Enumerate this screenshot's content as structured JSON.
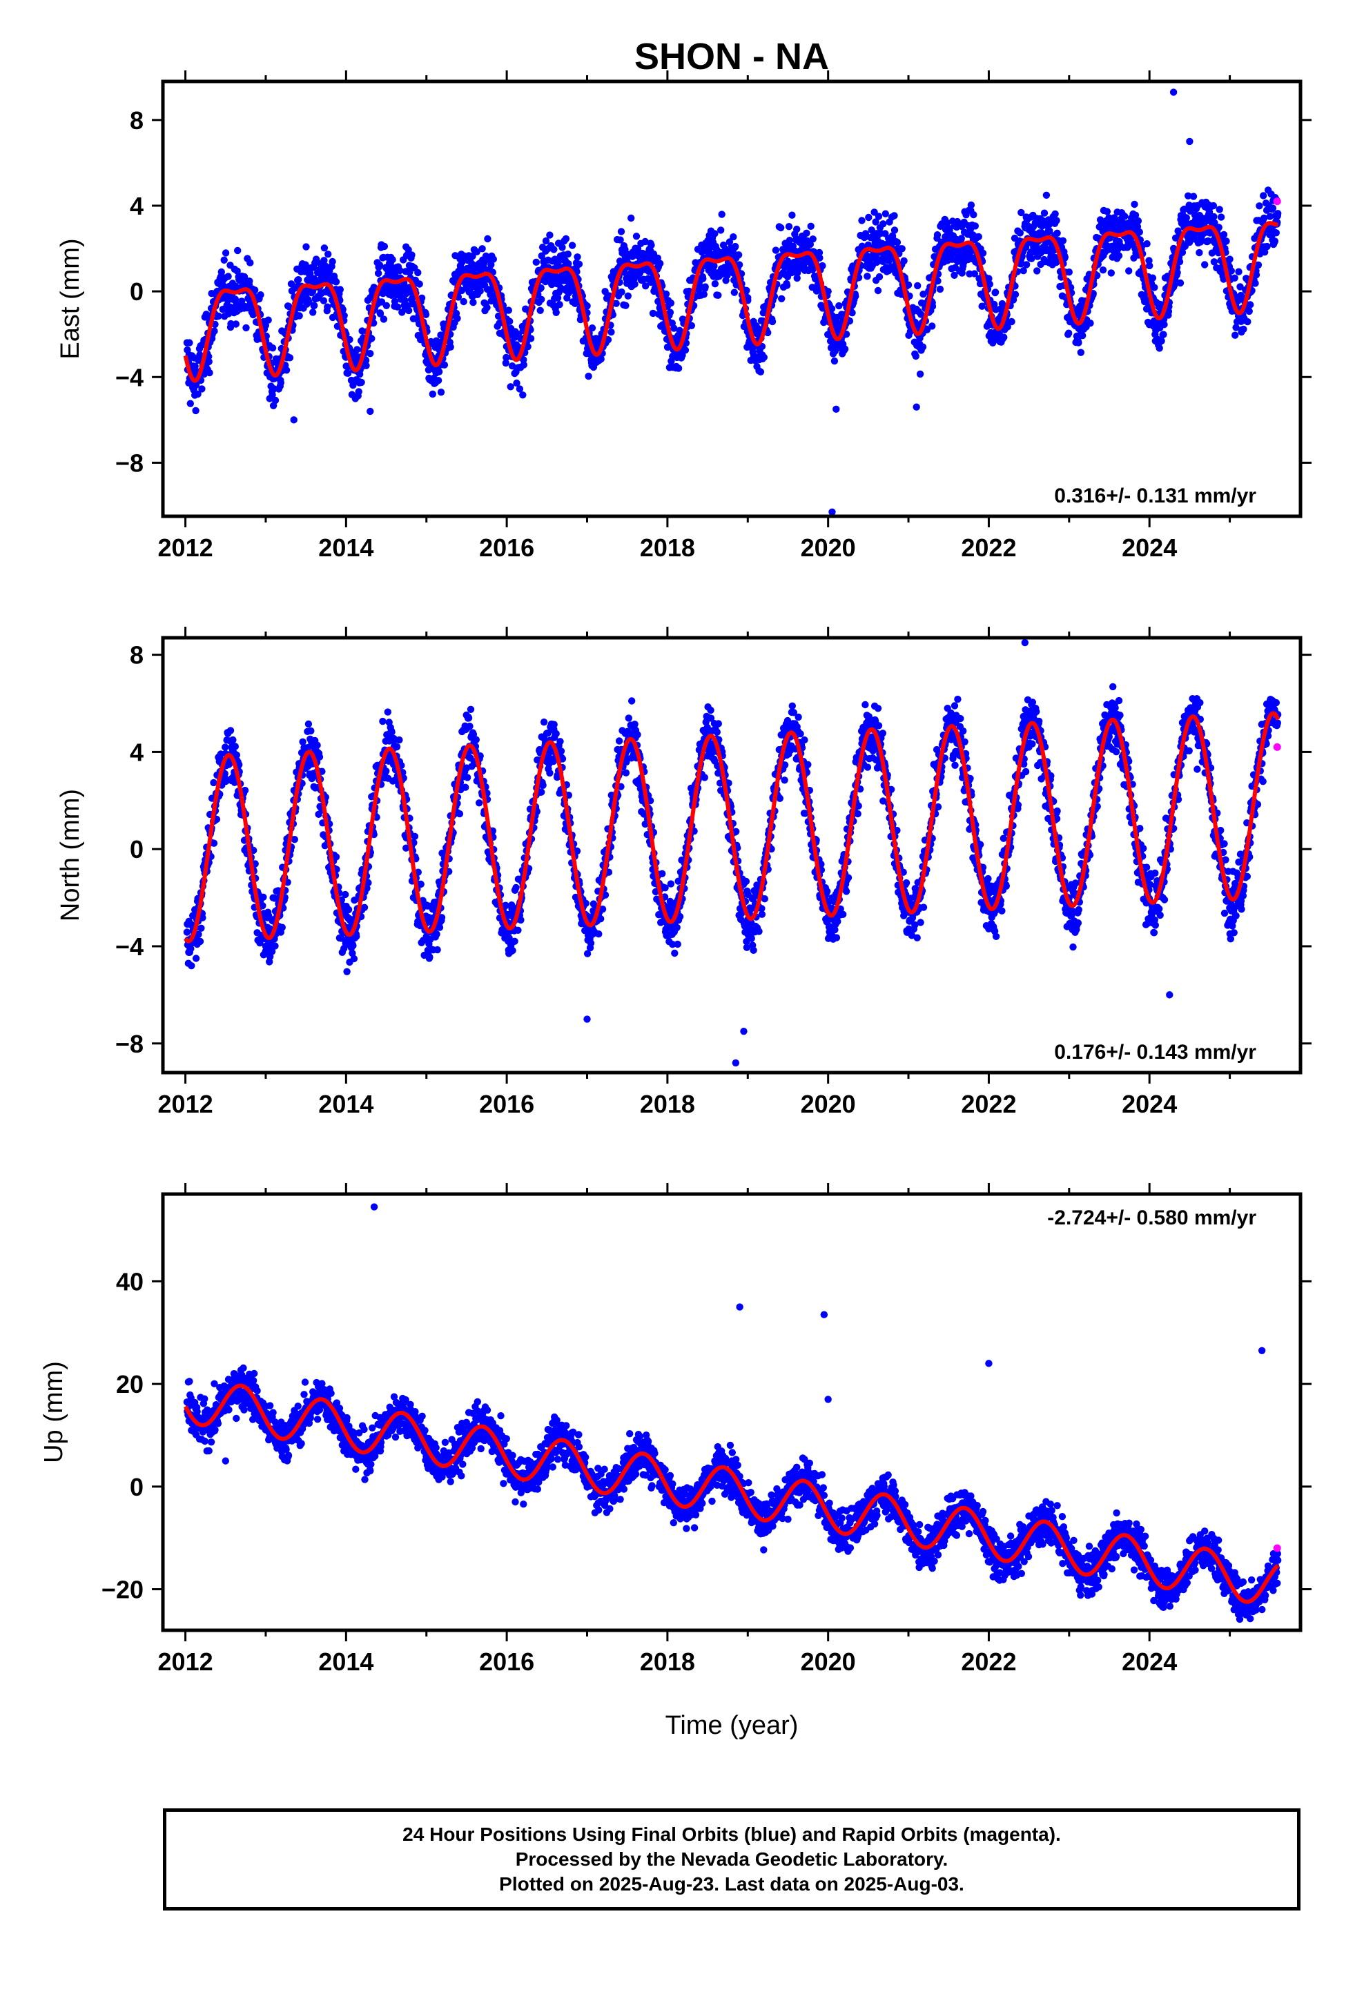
{
  "chart_data": {
    "title": "SHON - NA",
    "type": "scatter",
    "xlabel": "Time (year)",
    "x_ticks": [
      "2012",
      "2014",
      "2016",
      "2018",
      "2020",
      "2022",
      "2024"
    ],
    "time_range": [
      2012.0,
      2025.6
    ],
    "panels": [
      {
        "ylabel": "East (mm)",
        "ylim": [
          -10.5,
          9.8
        ],
        "y_ticks": [
          8,
          4,
          0,
          -4,
          -8
        ],
        "rate_text": "0.316+/- 0.131 mm/yr",
        "rate_position": "bottom-right",
        "model": {
          "trend_start": -1.5,
          "trend_end": 1.8,
          "annual_amplitude": 2.0,
          "annual_peak_month": "August",
          "semiannual_amplitude": 0.7
        },
        "final_points_sample": [
          [
            2012.05,
            -2.4
          ],
          [
            2012.3,
            -3.8
          ],
          [
            2012.6,
            0.2
          ],
          [
            2013.0,
            -2.3
          ],
          [
            2013.3,
            -3.1
          ],
          [
            2013.6,
            0.6
          ],
          [
            2014.0,
            -2.0
          ],
          [
            2014.3,
            -2.9
          ],
          [
            2014.6,
            0.9
          ],
          [
            2015.0,
            -1.7
          ],
          [
            2015.3,
            -2.6
          ],
          [
            2015.6,
            1.2
          ],
          [
            2016.0,
            -1.3
          ],
          [
            2016.3,
            -2.2
          ],
          [
            2016.6,
            1.5
          ],
          [
            2017.0,
            -1.0
          ],
          [
            2017.3,
            -1.9
          ],
          [
            2017.6,
            1.8
          ],
          [
            2018.0,
            -0.7
          ],
          [
            2018.3,
            -1.6
          ],
          [
            2018.6,
            2.1
          ],
          [
            2019.0,
            -0.3
          ],
          [
            2019.3,
            -1.3
          ],
          [
            2019.6,
            2.4
          ],
          [
            2020.0,
            0.0
          ],
          [
            2020.3,
            -1.0
          ],
          [
            2020.6,
            2.7
          ],
          [
            2021.0,
            0.3
          ],
          [
            2021.3,
            -0.7
          ],
          [
            2021.6,
            3.0
          ],
          [
            2022.0,
            0.6
          ],
          [
            2022.3,
            -0.4
          ],
          [
            2022.6,
            3.4
          ],
          [
            2023.0,
            0.9
          ],
          [
            2023.3,
            -0.1
          ],
          [
            2023.6,
            3.7
          ],
          [
            2024.0,
            1.2
          ],
          [
            2024.3,
            0.2
          ],
          [
            2024.6,
            4.0
          ],
          [
            2025.0,
            1.5
          ],
          [
            2025.3,
            0.5
          ],
          [
            2025.5,
            3.5
          ]
        ],
        "outliers": [
          [
            2024.3,
            9.3
          ],
          [
            2020.05,
            -10.3
          ],
          [
            2020.1,
            -5.5
          ],
          [
            2021.1,
            -5.4
          ],
          [
            2013.35,
            -6.0
          ],
          [
            2014.3,
            -5.6
          ],
          [
            2024.5,
            7.0
          ]
        ],
        "rapid_points": [
          [
            2025.59,
            4.2
          ]
        ]
      },
      {
        "ylabel": "North (mm)",
        "ylim": [
          -9.2,
          8.7
        ],
        "y_ticks": [
          8,
          4,
          0,
          -4,
          -8
        ],
        "rate_text": "0.176+/- 0.143 mm/yr",
        "rate_position": "bottom-right",
        "model": {
          "trend_start": 0.0,
          "trend_end": 1.8,
          "annual_amplitude": 3.8,
          "annual_peak_month": "July",
          "semiannual_amplitude": 0.0
        },
        "final_points_sample": [
          [
            2012.05,
            -3.9
          ],
          [
            2012.5,
            3.5
          ],
          [
            2013.0,
            -4.0
          ],
          [
            2013.5,
            3.7
          ],
          [
            2014.0,
            -3.8
          ],
          [
            2014.5,
            3.9
          ],
          [
            2015.0,
            -3.6
          ],
          [
            2015.5,
            4.0
          ],
          [
            2016.0,
            -3.5
          ],
          [
            2016.5,
            4.2
          ],
          [
            2017.0,
            -3.3
          ],
          [
            2017.5,
            4.4
          ],
          [
            2018.0,
            -3.1
          ],
          [
            2018.5,
            4.5
          ],
          [
            2019.0,
            -2.9
          ],
          [
            2019.5,
            4.7
          ],
          [
            2020.0,
            -2.8
          ],
          [
            2020.5,
            4.9
          ],
          [
            2021.0,
            -2.6
          ],
          [
            2021.5,
            5.0
          ],
          [
            2022.0,
            -2.4
          ],
          [
            2022.5,
            5.2
          ],
          [
            2023.0,
            -2.2
          ],
          [
            2023.5,
            5.4
          ],
          [
            2024.0,
            -2.1
          ],
          [
            2024.5,
            5.6
          ],
          [
            2025.0,
            -1.9
          ],
          [
            2025.5,
            5.8
          ]
        ],
        "outliers": [
          [
            2018.85,
            -8.8
          ],
          [
            2018.95,
            -7.5
          ],
          [
            2017.0,
            -7.0
          ],
          [
            2022.45,
            8.5
          ],
          [
            2024.25,
            -6.0
          ]
        ],
        "rapid_points": [
          [
            2025.59,
            4.2
          ]
        ]
      },
      {
        "ylabel": "Up (mm)",
        "ylim": [
          -28,
          57
        ],
        "y_ticks": [
          40,
          20,
          0,
          -20
        ],
        "rate_text": "-2.724+/- 0.580 mm/yr",
        "rate_position": "top-right",
        "model": {
          "trend_start": 17.0,
          "trend_end": -19.0,
          "annual_amplitude": 4.5,
          "annual_peak_month": "September",
          "semiannual_amplitude": 0.0
        },
        "final_points_sample": [
          [
            2012.05,
            20.5
          ],
          [
            2012.3,
            13.0
          ],
          [
            2012.8,
            21.0
          ],
          [
            2013.3,
            10.5
          ],
          [
            2013.8,
            18.5
          ],
          [
            2014.3,
            8.0
          ],
          [
            2014.8,
            16.0
          ],
          [
            2015.3,
            5.0
          ],
          [
            2015.8,
            13.0
          ],
          [
            2016.3,
            2.5
          ],
          [
            2016.8,
            10.0
          ],
          [
            2017.3,
            -0.5
          ],
          [
            2017.8,
            7.5
          ],
          [
            2018.3,
            -3.0
          ],
          [
            2018.8,
            5.0
          ],
          [
            2019.3,
            -5.5
          ],
          [
            2019.8,
            2.0
          ],
          [
            2020.3,
            -8.5
          ],
          [
            2020.8,
            -0.5
          ],
          [
            2021.3,
            -11.0
          ],
          [
            2021.8,
            -3.0
          ],
          [
            2022.3,
            -14.0
          ],
          [
            2022.8,
            -6.0
          ],
          [
            2023.3,
            -16.5
          ],
          [
            2023.8,
            -9.0
          ],
          [
            2024.3,
            -19.5
          ],
          [
            2024.8,
            -11.5
          ],
          [
            2025.3,
            -22.0
          ],
          [
            2025.55,
            -16.0
          ]
        ],
        "outliers": [
          [
            2014.35,
            54.5
          ],
          [
            2018.9,
            35.0
          ],
          [
            2019.95,
            33.5
          ],
          [
            2025.4,
            26.5
          ],
          [
            2022.0,
            24.0
          ],
          [
            2020.0,
            17.0
          ],
          [
            2012.5,
            5.0
          ]
        ],
        "rapid_points": [
          [
            2025.59,
            -12.0
          ]
        ]
      }
    ],
    "colors": {
      "final": "#0000ff",
      "rapid": "#ff00ff",
      "model": "#ff0000",
      "frame": "#000000"
    }
  },
  "footer": {
    "line1": "24 Hour Positions Using Final Orbits (blue) and Rapid Orbits (magenta).",
    "line2": "Processed by the Nevada Geodetic Laboratory.",
    "line3": "Plotted on 2025-Aug-23. Last data on 2025-Aug-03."
  }
}
